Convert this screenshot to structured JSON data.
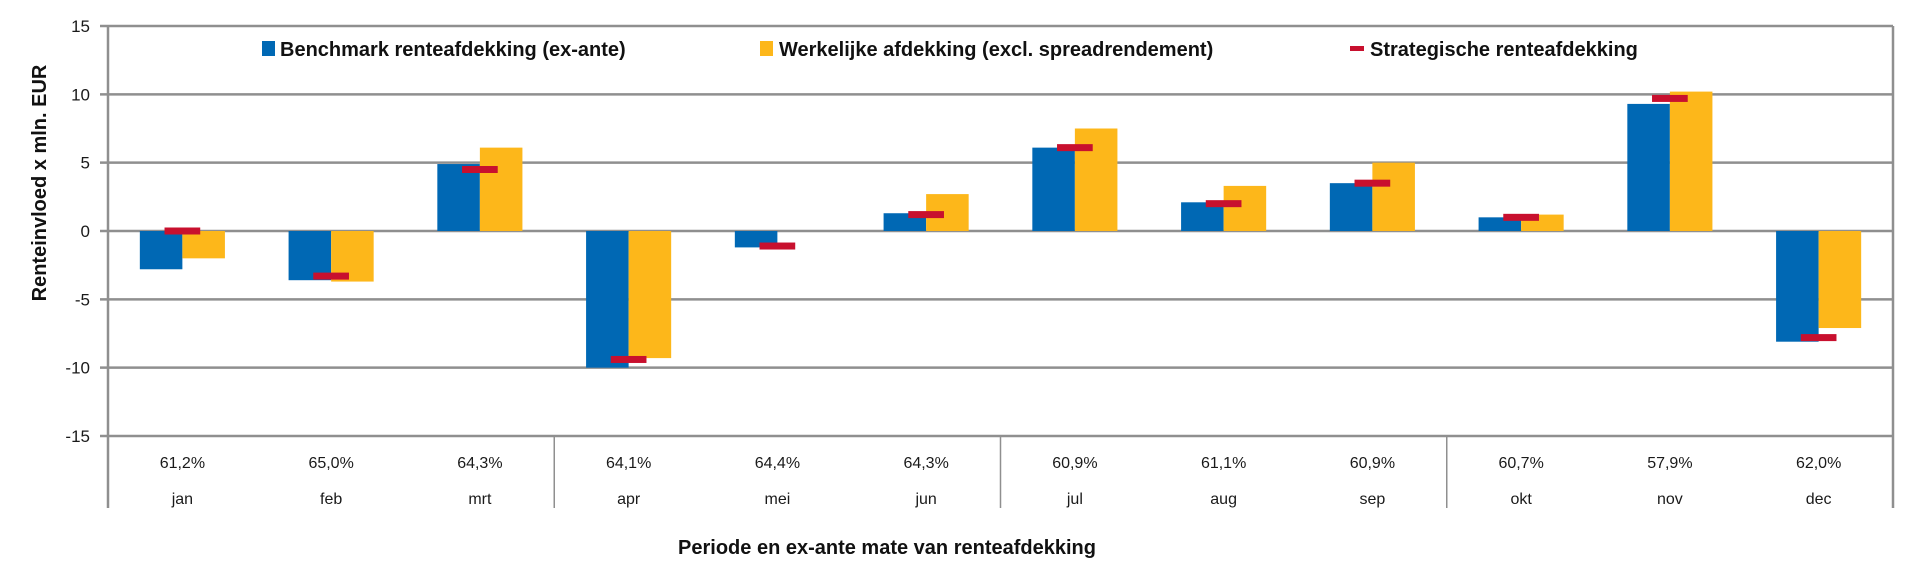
{
  "chart_data": {
    "type": "bar",
    "title": "",
    "xlabel": "Periode en ex-ante mate van renteafdekking",
    "ylabel": "Renteinvloed x mln. EUR",
    "ylim": [
      -15,
      15
    ],
    "yticks": [
      15,
      10,
      5,
      0,
      -5,
      -10,
      -15
    ],
    "grid": true,
    "legend_position": "top",
    "categories": [
      "jan",
      "feb",
      "mrt",
      "apr",
      "mei",
      "jun",
      "jul",
      "aug",
      "sep",
      "okt",
      "nov",
      "dec"
    ],
    "category_sublabels": [
      "61,2%",
      "65,0%",
      "64,3%",
      "64,1%",
      "64,4%",
      "64,3%",
      "60,9%",
      "61,1%",
      "60,9%",
      "60,7%",
      "57,9%",
      "62,0%"
    ],
    "quarter_groups": 3,
    "series": [
      {
        "name": "Benchmark renteafdekking (ex-ante)",
        "kind": "bar",
        "color": "#0068b4",
        "values": [
          -2.8,
          -3.6,
          4.9,
          -10.0,
          -1.2,
          1.3,
          6.1,
          2.1,
          3.5,
          1.0,
          9.3,
          -8.1
        ]
      },
      {
        "name": "Werkelijke afdekking (excl. spreadrendement)",
        "kind": "bar",
        "color": "#fdb71a",
        "values": [
          -2.0,
          -3.7,
          6.1,
          -9.3,
          0.0,
          2.7,
          7.5,
          3.3,
          5.0,
          1.2,
          10.2,
          -7.1
        ]
      },
      {
        "name": "Strategische renteafdekking",
        "kind": "marker",
        "color": "#c8102e",
        "values": [
          0.0,
          -3.3,
          4.5,
          -9.4,
          -1.1,
          1.2,
          6.1,
          2.0,
          3.5,
          1.0,
          9.7,
          -7.8
        ]
      }
    ]
  }
}
